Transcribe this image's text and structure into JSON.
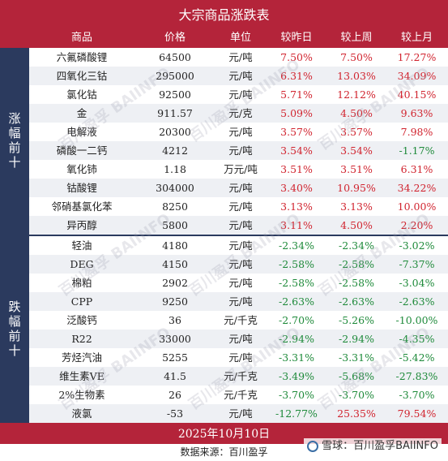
{
  "title": "大宗商品涨跌表",
  "headers": [
    "商品",
    "价格",
    "单位",
    "较昨日",
    "较上周",
    "较上月"
  ],
  "sections": {
    "up_label": "涨幅前十",
    "down_label": "跌幅前十"
  },
  "rising": [
    {
      "name": "六氟磷酸锂",
      "price": "64500",
      "unit": "元/吨",
      "day": "7.50%",
      "week": "7.50%",
      "month": "17.27%"
    },
    {
      "name": "四氧化三钴",
      "price": "295000",
      "unit": "元/吨",
      "day": "6.31%",
      "week": "13.03%",
      "month": "34.09%"
    },
    {
      "name": "氯化钴",
      "price": "92500",
      "unit": "元/吨",
      "day": "5.71%",
      "week": "12.12%",
      "month": "40.15%"
    },
    {
      "name": "金",
      "price": "911.57",
      "unit": "元/克",
      "day": "5.09%",
      "week": "4.50%",
      "month": "9.63%"
    },
    {
      "name": "电解液",
      "price": "20300",
      "unit": "元/吨",
      "day": "3.57%",
      "week": "3.57%",
      "month": "7.98%"
    },
    {
      "name": "磷酸一二钙",
      "price": "4212",
      "unit": "元/吨",
      "day": "3.54%",
      "week": "3.54%",
      "month": "-1.17%"
    },
    {
      "name": "氧化铈",
      "price": "1.18",
      "unit": "万元/吨",
      "day": "3.51%",
      "week": "3.51%",
      "month": "6.31%"
    },
    {
      "name": "钴酸锂",
      "price": "304000",
      "unit": "元/吨",
      "day": "3.40%",
      "week": "10.95%",
      "month": "34.22%"
    },
    {
      "name": "邻硝基氯化苯",
      "price": "8250",
      "unit": "元/吨",
      "day": "3.13%",
      "week": "3.13%",
      "month": "10.00%"
    },
    {
      "name": "异丙醇",
      "price": "5800",
      "unit": "元/吨",
      "day": "3.11%",
      "week": "4.50%",
      "month": "2.20%"
    }
  ],
  "falling": [
    {
      "name": "轻油",
      "price": "4180",
      "unit": "元/吨",
      "day": "-2.34%",
      "week": "-2.34%",
      "month": "-3.02%"
    },
    {
      "name": "DEG",
      "price": "4150",
      "unit": "元/吨",
      "day": "-2.58%",
      "week": "-2.58%",
      "month": "-7.37%"
    },
    {
      "name": "棉粕",
      "price": "2902",
      "unit": "元/吨",
      "day": "-2.58%",
      "week": "-2.58%",
      "month": "-3.04%"
    },
    {
      "name": "CPP",
      "price": "9250",
      "unit": "元/吨",
      "day": "-2.63%",
      "week": "-2.63%",
      "month": "-2.63%"
    },
    {
      "name": "泛酸钙",
      "price": "36",
      "unit": "元/千克",
      "day": "-2.70%",
      "week": "-5.26%",
      "month": "-10.00%"
    },
    {
      "name": "R22",
      "price": "33000",
      "unit": "元/吨",
      "day": "-2.94%",
      "week": "-2.94%",
      "month": "-4.35%"
    },
    {
      "name": "芳烃汽油",
      "price": "5255",
      "unit": "元/吨",
      "day": "-3.31%",
      "week": "-3.31%",
      "month": "-5.42%"
    },
    {
      "name": "维生素VE",
      "price": "41.5",
      "unit": "元/千克",
      "day": "-3.49%",
      "week": "-5.68%",
      "month": "-27.83%"
    },
    {
      "name": "2%生物素",
      "price": "26",
      "unit": "元/千克",
      "day": "-3.70%",
      "week": "-3.70%",
      "month": "-3.70%"
    },
    {
      "name": "液氯",
      "price": "-53",
      "unit": "元/吨",
      "day": "-12.77%",
      "week": "25.35%",
      "month": "79.54%"
    }
  ],
  "date": "2025年10月10日",
  "source": "数据来源：百川盈孚",
  "brand": "雪球：百川盈孚BAIINFO",
  "watermark": "百川盈孚 BAIINFO"
}
